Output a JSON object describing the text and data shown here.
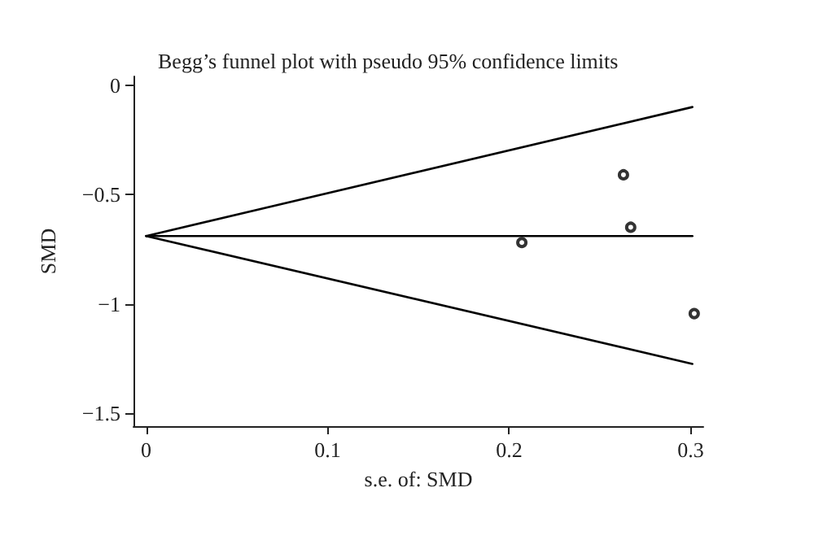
{
  "chart_data": {
    "type": "scatter",
    "title": "Begg’s funnel plot with pseudo 95% confidence limits",
    "xlabel": "s.e. of: SMD",
    "ylabel": "SMD",
    "xlim": [
      -0.007,
      0.307
    ],
    "ylim": [
      -1.56,
      0.04
    ],
    "xticks": [
      0,
      0.1,
      0.2,
      0.3
    ],
    "yticks": [
      0,
      -0.5,
      -1,
      -1.5
    ],
    "grid": false,
    "marker": "circle",
    "series": [
      {
        "color": "#000000",
        "x": [
          0.207,
          0.263,
          0.267,
          0.302
        ],
        "values": [
          -0.72,
          -0.41,
          -0.65,
          -1.045
        ]
      },
      {
        "type": "line",
        "color": "#000000",
        "marker": "none",
        "line_style": "solid",
        "x": [
          0,
          0.301
        ],
        "values": [
          -0.69,
          -0.1
        ]
      },
      {
        "type": "line",
        "color": "#000000",
        "marker": "none",
        "line_style": "solid",
        "x": [
          0,
          0.301
        ],
        "values": [
          -0.69,
          -0.69
        ]
      },
      {
        "type": "line",
        "color": "#000000",
        "marker": "none",
        "line_style": "solid",
        "x": [
          0,
          0.301
        ],
        "values": [
          -0.69,
          -1.275
        ]
      }
    ]
  }
}
